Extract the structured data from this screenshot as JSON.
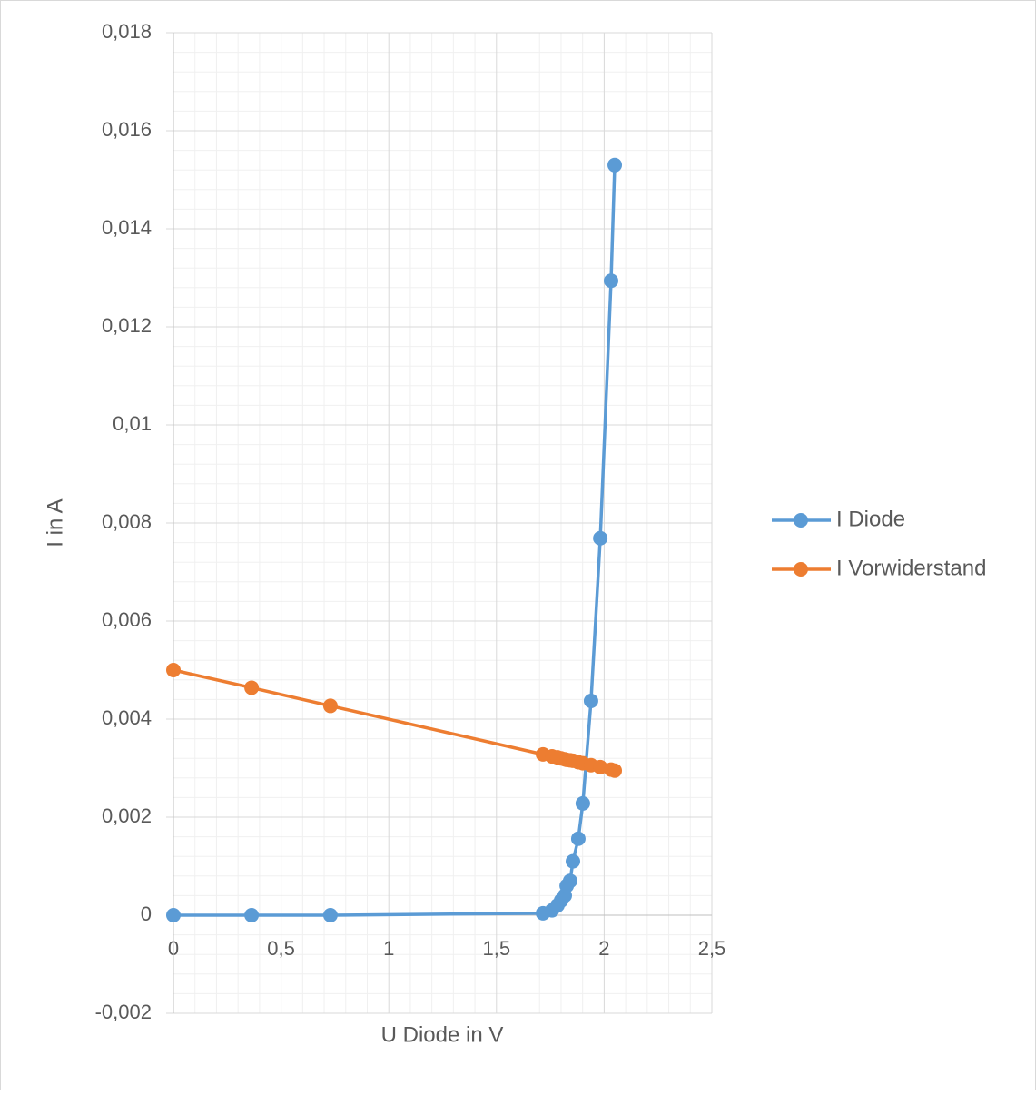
{
  "chart_data": {
    "type": "scatter",
    "xlabel": "U Diode in V",
    "ylabel": "I in A",
    "xlim": [
      0,
      2.5
    ],
    "ylim": [
      -0.002,
      0.018
    ],
    "xticks": [
      0,
      {
        "value": 0.5,
        "label": "0,5"
      },
      1,
      {
        "value": 1.5,
        "label": "1,5"
      },
      2,
      {
        "value": 2.5,
        "label": "2,5"
      }
    ],
    "yticks": [
      {
        "value": -0.002,
        "label": "-0,002"
      },
      0,
      {
        "value": 0.002,
        "label": "0,002"
      },
      {
        "value": 0.004,
        "label": "0,004"
      },
      {
        "value": 0.006,
        "label": "0,006"
      },
      {
        "value": 0.008,
        "label": "0,008"
      },
      {
        "value": 0.01,
        "label": "0,01"
      },
      {
        "value": 0.012,
        "label": "0,012"
      },
      {
        "value": 0.014,
        "label": "0,014"
      },
      {
        "value": 0.016,
        "label": "0,016"
      },
      {
        "value": 0.018,
        "label": "0,018"
      }
    ],
    "grid": true,
    "minor_grid": true,
    "legend": "right",
    "series": [
      {
        "name": "I Diode",
        "color": "#5b9bd5",
        "x": [
          0,
          0.363,
          0.729,
          1.716,
          1.758,
          1.783,
          1.8,
          1.817,
          1.826,
          1.842,
          1.855,
          1.88,
          1.901,
          1.939,
          1.982,
          2.032,
          2.049
        ],
        "values": [
          0,
          0,
          0,
          4e-05,
          0.0001,
          0.0002,
          0.0003,
          0.0004,
          0.0006,
          0.0007,
          0.0011,
          0.00156,
          0.00228,
          0.00437,
          0.00769,
          0.01294,
          0.0153
        ]
      },
      {
        "name": "I Vorwiderstand",
        "color": "#ed7d31",
        "x": [
          0,
          0.363,
          0.729,
          1.716,
          1.758,
          1.783,
          1.8,
          1.817,
          1.826,
          1.842,
          1.855,
          1.88,
          1.901,
          1.939,
          1.982,
          2.032,
          2.049
        ],
        "values": [
          0.005,
          0.00464,
          0.00427,
          0.00328,
          0.00324,
          0.00322,
          0.0032,
          0.00318,
          0.00317,
          0.00316,
          0.00315,
          0.00312,
          0.0031,
          0.00306,
          0.00302,
          0.00297,
          0.00295
        ]
      }
    ]
  }
}
